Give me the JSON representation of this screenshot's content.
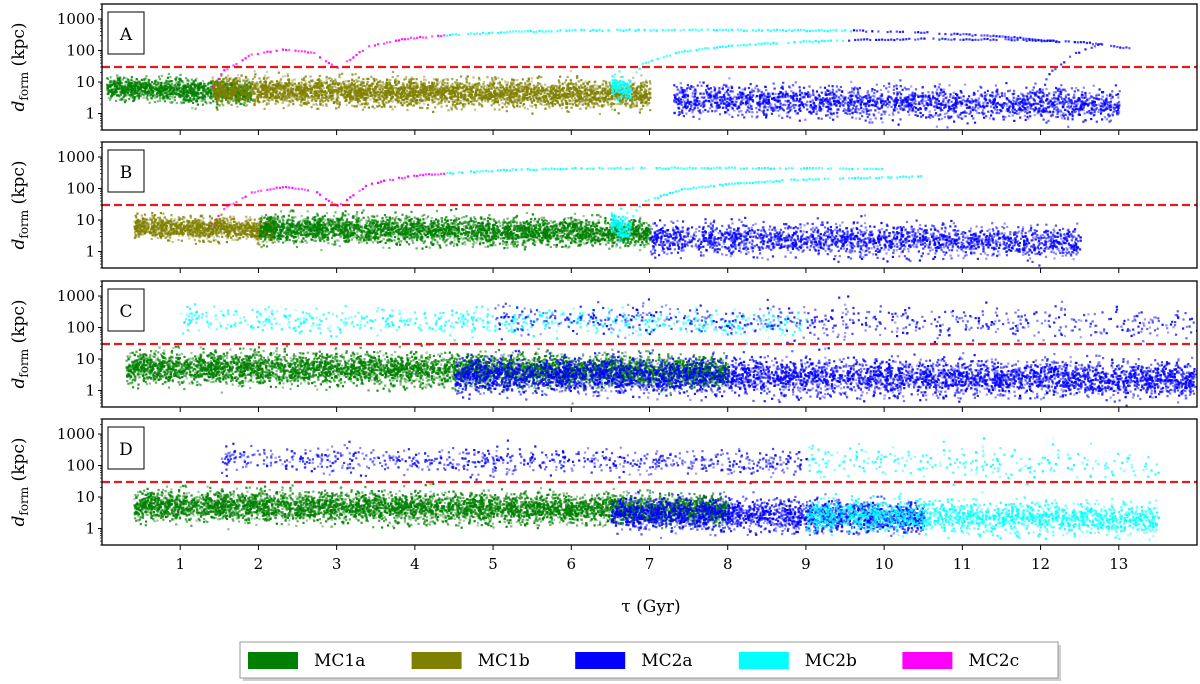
{
  "chart_data": {
    "type": "scatter",
    "x_axis": {
      "label": "τ (Gyr)",
      "range": [
        0,
        14
      ],
      "ticks": [
        1,
        2,
        3,
        4,
        5,
        6,
        7,
        8,
        9,
        10,
        11,
        12,
        13
      ],
      "tick_labels": [
        "1",
        "2",
        "3",
        "4",
        "5",
        "6",
        "7",
        "8",
        "9",
        "10",
        "11",
        "12",
        "13"
      ]
    },
    "y_axis": {
      "label_main": "d",
      "label_sub": "form",
      "label_unit": " (kpc)",
      "scale": "log",
      "range": [
        0.3,
        3000
      ],
      "ticks": [
        1,
        10,
        100,
        1000
      ],
      "tick_labels": [
        "1",
        "10",
        "100",
        "1000"
      ]
    },
    "threshold_line": {
      "y": 30,
      "color": "#e41a1c",
      "style": "dashed"
    },
    "colors": {
      "MC1a": "#008000",
      "MC1b": "#808000",
      "MC2a": "#0000ff",
      "MC2b": "#00ffff",
      "MC2c": "#ff00ff"
    },
    "legend": {
      "placement": "bottom-center",
      "entries": [
        {
          "name": "MC1a",
          "color": "#008000"
        },
        {
          "name": "MC1b",
          "color": "#808000"
        },
        {
          "name": "MC2a",
          "color": "#0000ff"
        },
        {
          "name": "MC2b",
          "color": "#00ffff"
        },
        {
          "name": "MC2c",
          "color": "#ff00ff"
        }
      ]
    },
    "panels": [
      {
        "label": "A",
        "populations": [
          {
            "group": "MC1a",
            "x": [
              0.05,
              1.9
            ],
            "y_center": 7,
            "y_spread": 0.25,
            "density": 1.0
          },
          {
            "group": "MC1b",
            "x": [
              1.4,
              7.0
            ],
            "y_center": 6,
            "y_spread": 0.3,
            "density": 1.0
          },
          {
            "group": "MC2a",
            "x": [
              7.3,
              13.0
            ],
            "y_center": 3,
            "y_spread": 0.35,
            "density": 0.55
          },
          {
            "group": "MC2b",
            "x": [
              6.5,
              6.75
            ],
            "y_center": 8,
            "y_spread": 0.25,
            "density": 0.8
          }
        ],
        "tracks": [
          {
            "group": "MC2c",
            "x": [
              1.4,
              1.55,
              1.9,
              2.3,
              2.7,
              3.0
            ],
            "y": [
              8,
              25,
              80,
              120,
              90,
              30
            ]
          },
          {
            "group": "MC2c",
            "x": [
              3.0,
              3.4,
              3.9,
              4.4
            ],
            "y": [
              30,
              150,
              260,
              330
            ]
          },
          {
            "group": "MC2b",
            "x": [
              4.4,
              5.2,
              6.0,
              7.0,
              8.0,
              9.0,
              9.6
            ],
            "y": [
              330,
              420,
              470,
              480,
              480,
              470,
              460
            ]
          },
          {
            "group": "MC2b",
            "x": [
              6.7,
              6.9,
              7.4,
              8.0,
              8.8,
              9.5
            ],
            "y": [
              8,
              40,
              100,
              150,
              200,
              230
            ]
          },
          {
            "group": "MC2a",
            "x": [
              9.6,
              10.5,
              11.5,
              12.3
            ],
            "y": [
              460,
              400,
              300,
              200
            ]
          },
          {
            "group": "MC2a",
            "x": [
              9.5,
              10.5,
              11.5,
              12.5,
              13.2
            ],
            "y": [
              230,
              250,
              240,
              200,
              120
            ]
          },
          {
            "group": "MC2a",
            "x": [
              11.9,
              12.1,
              12.4,
              12.8
            ],
            "y": [
              3,
              20,
              80,
              200
            ]
          }
        ]
      },
      {
        "label": "B",
        "populations": [
          {
            "group": "MC1b",
            "x": [
              0.4,
              2.2
            ],
            "y_center": 7,
            "y_spread": 0.25,
            "density": 1.0
          },
          {
            "group": "MC1a",
            "x": [
              2.0,
              7.0
            ],
            "y_center": 6,
            "y_spread": 0.3,
            "density": 1.0
          },
          {
            "group": "MC2a",
            "x": [
              7.0,
              12.5
            ],
            "y_center": 3,
            "y_spread": 0.35,
            "density": 0.55
          },
          {
            "group": "MC2b",
            "x": [
              6.5,
              6.75
            ],
            "y_center": 8,
            "y_spread": 0.25,
            "density": 0.8
          }
        ],
        "tracks": [
          {
            "group": "MC2c",
            "x": [
              1.4,
              1.55,
              1.9,
              2.3,
              2.7,
              3.0
            ],
            "y": [
              8,
              25,
              80,
              120,
              90,
              30
            ]
          },
          {
            "group": "MC2c",
            "x": [
              3.0,
              3.4,
              3.9,
              4.4
            ],
            "y": [
              30,
              150,
              260,
              330
            ]
          },
          {
            "group": "MC2b",
            "x": [
              4.4,
              5.2,
              6.0,
              7.0,
              8.0,
              9.0,
              10.0
            ],
            "y": [
              330,
              420,
              470,
              480,
              480,
              470,
              460
            ]
          },
          {
            "group": "MC2b",
            "x": [
              6.7,
              6.9,
              7.4,
              8.0,
              8.8,
              9.5,
              10.5
            ],
            "y": [
              8,
              40,
              100,
              150,
              200,
              230,
              260
            ]
          }
        ]
      },
      {
        "label": "C",
        "populations": [
          {
            "group": "MC1a",
            "x": [
              0.3,
              8.0
            ],
            "y_center": 6,
            "y_spread": 0.35,
            "density": 1.0
          },
          {
            "group": "MC2a",
            "x": [
              4.5,
              14.0
            ],
            "y_center": 3.5,
            "y_spread": 0.4,
            "density": 0.75
          },
          {
            "group": "MC2b",
            "x": [
              1.0,
              9.0
            ],
            "y_center": 200,
            "y_spread": 0.3,
            "density": 0.12
          },
          {
            "group": "MC2a",
            "x": [
              5.0,
              14.0
            ],
            "y_center": 200,
            "y_spread": 0.35,
            "density": 0.1
          }
        ],
        "tracks": []
      },
      {
        "label": "D",
        "populations": [
          {
            "group": "MC1a",
            "x": [
              0.4,
              8.0
            ],
            "y_center": 6,
            "y_spread": 0.33,
            "density": 1.0
          },
          {
            "group": "MC2a",
            "x": [
              6.5,
              10.5
            ],
            "y_center": 3.5,
            "y_spread": 0.35,
            "density": 0.8
          },
          {
            "group": "MC2b",
            "x": [
              9.0,
              13.5
            ],
            "y_center": 3,
            "y_spread": 0.35,
            "density": 0.55
          },
          {
            "group": "MC2a",
            "x": [
              1.5,
              9.0
            ],
            "y_center": 180,
            "y_spread": 0.3,
            "density": 0.14
          },
          {
            "group": "MC2b",
            "x": [
              9.0,
              13.5
            ],
            "y_center": 150,
            "y_spread": 0.35,
            "density": 0.08
          }
        ],
        "tracks": []
      }
    ]
  }
}
